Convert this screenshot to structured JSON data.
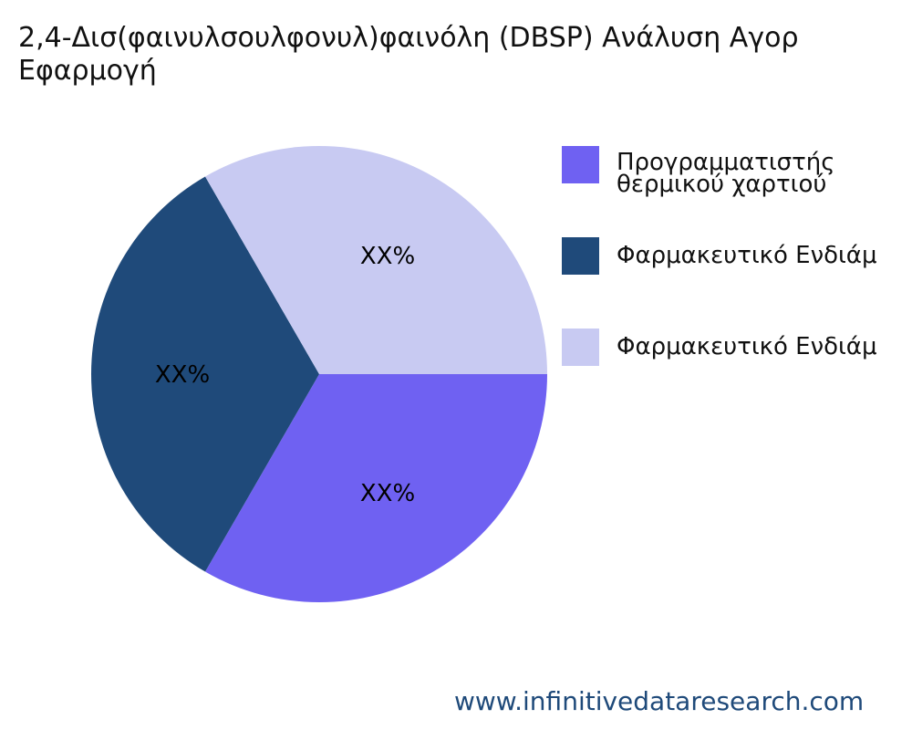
{
  "chart_data": {
    "type": "pie",
    "title_lines": [
      "2,4-Δισ(φαινυλσουλφονυλ)φαινόλη (DBSP) Ανάλυση Αγορ",
      "Εφαρμογή"
    ],
    "slices": [
      {
        "label": "Προγραμματιστής θερμικού χαρτιού",
        "label_lines": [
          "Προγραμματιστής",
          "θερμικού χαρτιού"
        ],
        "value": 33.33,
        "data_label": "XX%",
        "color": "#6f61f2"
      },
      {
        "label": "Φαρμακευτικό Ενδιάμ",
        "label_lines": [
          "Φαρμακευτικό Ενδιάμ"
        ],
        "value": 33.33,
        "data_label": "XX%",
        "color": "#1f4a7a"
      },
      {
        "label": "Φαρμακευτικό Ενδιάμ",
        "label_lines": [
          "Φαρμακευτικό Ενδιάμ"
        ],
        "value": 33.33,
        "data_label": "XX%",
        "color": "#c8caf2"
      }
    ],
    "start_angle": "3 o'clock",
    "direction": "clockwise",
    "legend_position": "right"
  },
  "footer": {
    "watermark": "www.infinitivedataresearch.com"
  }
}
